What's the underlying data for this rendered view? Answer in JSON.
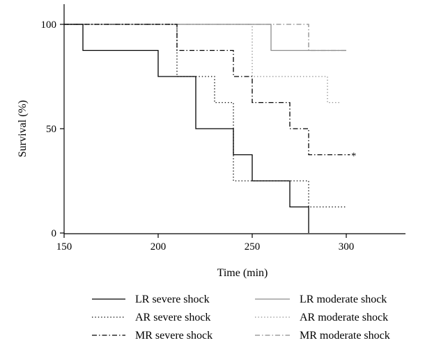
{
  "chart_data": {
    "type": "line",
    "step": true,
    "xlabel": "Time (min)",
    "ylabel": "Survival (%)",
    "xlim": [
      150,
      330
    ],
    "ylim": [
      0,
      100
    ],
    "x_ticks": [
      150,
      200,
      250,
      300
    ],
    "y_ticks": [
      0,
      50,
      100
    ],
    "grid": false,
    "legend_position": "bottom",
    "series": [
      {
        "name": "LR severe shock",
        "color": "#000000",
        "dash": "solid",
        "x": [
          150,
          160,
          200,
          220,
          240,
          250,
          270,
          280
        ],
        "y": [
          100,
          87.5,
          75,
          50,
          37.5,
          25,
          12.5,
          0
        ]
      },
      {
        "name": "AR severe shock",
        "color": "#000000",
        "dash": "dotted",
        "x": [
          150,
          210,
          230,
          240,
          280,
          300
        ],
        "y": [
          100,
          75,
          62.5,
          25,
          12.5,
          12.5
        ]
      },
      {
        "name": "MR severe shock",
        "color": "#000000",
        "dash": "dashdot",
        "x": [
          150,
          210,
          240,
          250,
          270,
          280,
          302
        ],
        "y": [
          100,
          87.5,
          75,
          62.5,
          50,
          37.5,
          37.5
        ]
      },
      {
        "name": "LR moderate shock",
        "color": "#8c8c8c",
        "dash": "solid",
        "x": [
          150,
          260,
          300
        ],
        "y": [
          100,
          87.5,
          87.5
        ]
      },
      {
        "name": "AR moderate shock",
        "color": "#8c8c8c",
        "dash": "dotted",
        "x": [
          150,
          250,
          290,
          297
        ],
        "y": [
          100,
          75,
          62.5,
          62.5
        ]
      },
      {
        "name": "MR moderate shock",
        "color": "#8c8c8c",
        "dash": "dashdot",
        "x": [
          150,
          280,
          300
        ],
        "y": [
          100,
          87.5,
          87.5
        ]
      }
    ],
    "annotations": [
      {
        "text": "*",
        "x": 304,
        "y": 37.5
      }
    ]
  }
}
